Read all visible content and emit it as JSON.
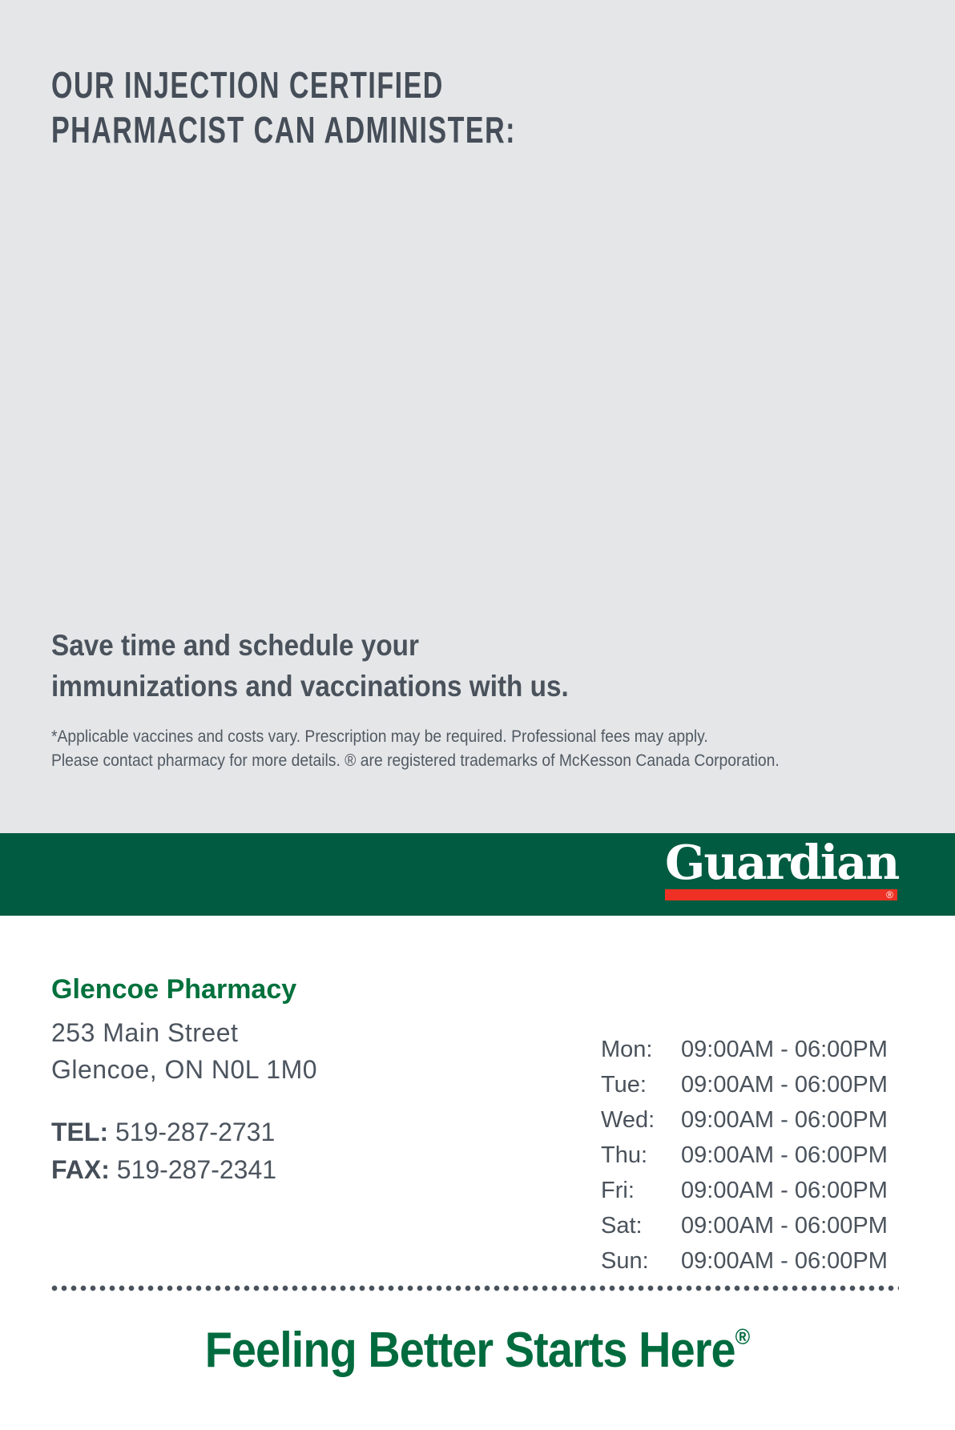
{
  "hero": {
    "heading_line1": "OUR INJECTION CERTIFIED",
    "heading_line2": "PHARMACIST CAN ADMINISTER:",
    "subheading_line1": "Save time and schedule your",
    "subheading_line2": "immunizations and vaccinations with us.",
    "disclaimer_line1": "*Applicable vaccines and costs vary. Prescription may be required. Professional fees may apply.",
    "disclaimer_line2": "Please contact pharmacy for more details. ® are registered trademarks of McKesson Canada Corporation."
  },
  "brand": {
    "logo_text": "Guardian",
    "registered_mark": "®",
    "colors": {
      "hero_gray": "#E5E6E8",
      "band_green": "#005B40",
      "logo_red": "#EE3124",
      "pharmacy_green": "#00713C",
      "tagline_green": "#006B3E",
      "text_slate": "#4A525C"
    }
  },
  "pharmacy": {
    "name": "Glencoe Pharmacy",
    "address_line1": "253 Main Street",
    "address_line2": "Glencoe, ON N0L 1M0",
    "tel_label": "TEL:",
    "tel_number": "519-287-2731",
    "fax_label": "FAX:",
    "fax_number": "519-287-2341"
  },
  "hours": {
    "rows": [
      {
        "day": "Mon:",
        "time": "09:00AM - 06:00PM"
      },
      {
        "day": "Tue:",
        "time": "09:00AM - 06:00PM"
      },
      {
        "day": "Wed:",
        "time": "09:00AM - 06:00PM"
      },
      {
        "day": "Thu:",
        "time": "09:00AM - 06:00PM"
      },
      {
        "day": "Fri:",
        "time": "09:00AM - 06:00PM"
      },
      {
        "day": "Sat:",
        "time": "09:00AM - 06:00PM"
      },
      {
        "day": "Sun:",
        "time": "09:00AM - 06:00PM"
      }
    ]
  },
  "tagline": {
    "text": "Feeling Better Starts Here",
    "registered_mark": "®"
  }
}
